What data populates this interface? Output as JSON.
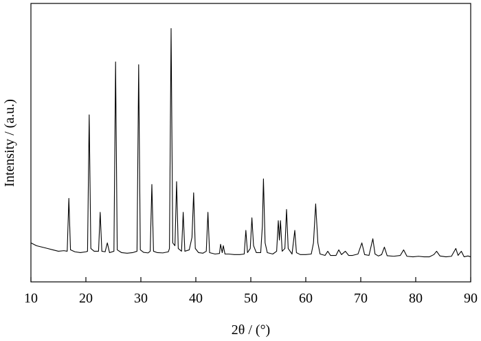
{
  "chart_data": {
    "type": "line",
    "x_label": "2θ / (°)",
    "y_label": "Intensity / (a.u.)",
    "xlim": [
      10,
      90
    ],
    "xticks": [
      10,
      20,
      30,
      40,
      50,
      60,
      70,
      80,
      90
    ],
    "ylim": [
      0,
      100
    ],
    "series": [
      {
        "color": "#000000",
        "x": [
          10,
          11,
          12,
          13,
          14,
          15,
          16,
          16.6,
          16.9,
          17.2,
          18,
          19,
          20,
          20.3,
          20.6,
          20.9,
          21.5,
          22.3,
          22.6,
          22.9,
          23.5,
          23.9,
          24.3,
          25.1,
          25.4,
          25.7,
          26.5,
          27.5,
          28.5,
          29.3,
          29.6,
          29.9,
          30.5,
          31.3,
          31.7,
          32,
          32.3,
          33,
          34,
          35,
          35.2,
          35.5,
          35.8,
          36.2,
          36.5,
          36.8,
          37.4,
          37.7,
          38,
          38.8,
          39.3,
          39.6,
          39.9,
          40.5,
          41.3,
          41.9,
          42.2,
          42.5,
          43.5,
          44.3,
          44.5,
          44.8,
          45,
          45.3,
          46,
          47,
          48,
          48.8,
          49.1,
          49.4,
          49.9,
          50.2,
          50.5,
          51,
          51.8,
          52.1,
          52.3,
          52.6,
          53,
          54,
          54.7,
          55,
          55.2,
          55.4,
          55.7,
          56.2,
          56.5,
          56.8,
          57.5,
          58,
          58.3,
          59,
          60,
          61,
          61.4,
          61.8,
          62.2,
          62.6,
          63.5,
          64,
          64.5,
          65.5,
          66,
          66.5,
          67.2,
          67.8,
          68.5,
          69.5,
          70.2,
          70.7,
          71.5,
          72.2,
          72.6,
          73.2,
          73.8,
          74.3,
          74.8,
          76,
          77.2,
          77.8,
          78.4,
          79.5,
          80.5,
          81.5,
          82.5,
          83.3,
          83.8,
          84.4,
          85.5,
          86.5,
          87.3,
          87.7,
          88.3,
          88.8,
          89.5,
          90
        ],
        "values": [
          14,
          13,
          12.5,
          12,
          11.5,
          11,
          11.2,
          11,
          30,
          11.5,
          10.8,
          10.5,
          10.8,
          11,
          60,
          12,
          11,
          11,
          25,
          11,
          10.8,
          14,
          10.5,
          11,
          79,
          11.5,
          10.5,
          10.3,
          10.5,
          11,
          78,
          11.5,
          10.6,
          10.4,
          11,
          35,
          11,
          10.5,
          10.4,
          10.8,
          12,
          91,
          14,
          13,
          36,
          12,
          11,
          25,
          11,
          11.5,
          16,
          32,
          12,
          10.5,
          10.3,
          11,
          25,
          10.5,
          10,
          10.2,
          13.5,
          10.5,
          13,
          10,
          10,
          9.8,
          9.8,
          10,
          18.5,
          10.5,
          12,
          23,
          13,
          10.5,
          10.5,
          20,
          37,
          14,
          10.5,
          10,
          11,
          22,
          15,
          22,
          11,
          12,
          26,
          12,
          10,
          18.5,
          10.5,
          9.8,
          9.8,
          10,
          14,
          28,
          14,
          10,
          9.5,
          11,
          9.5,
          9.5,
          11.5,
          9.8,
          11,
          9.5,
          9.5,
          10,
          14,
          9.8,
          9.5,
          15.5,
          10,
          9.3,
          9.8,
          12.5,
          9.4,
          9.2,
          9.5,
          11.5,
          9.2,
          9,
          9.2,
          9,
          9,
          9.8,
          11,
          9.3,
          9,
          9.2,
          12,
          9.5,
          11,
          9,
          9.3,
          9
        ]
      }
    ]
  }
}
